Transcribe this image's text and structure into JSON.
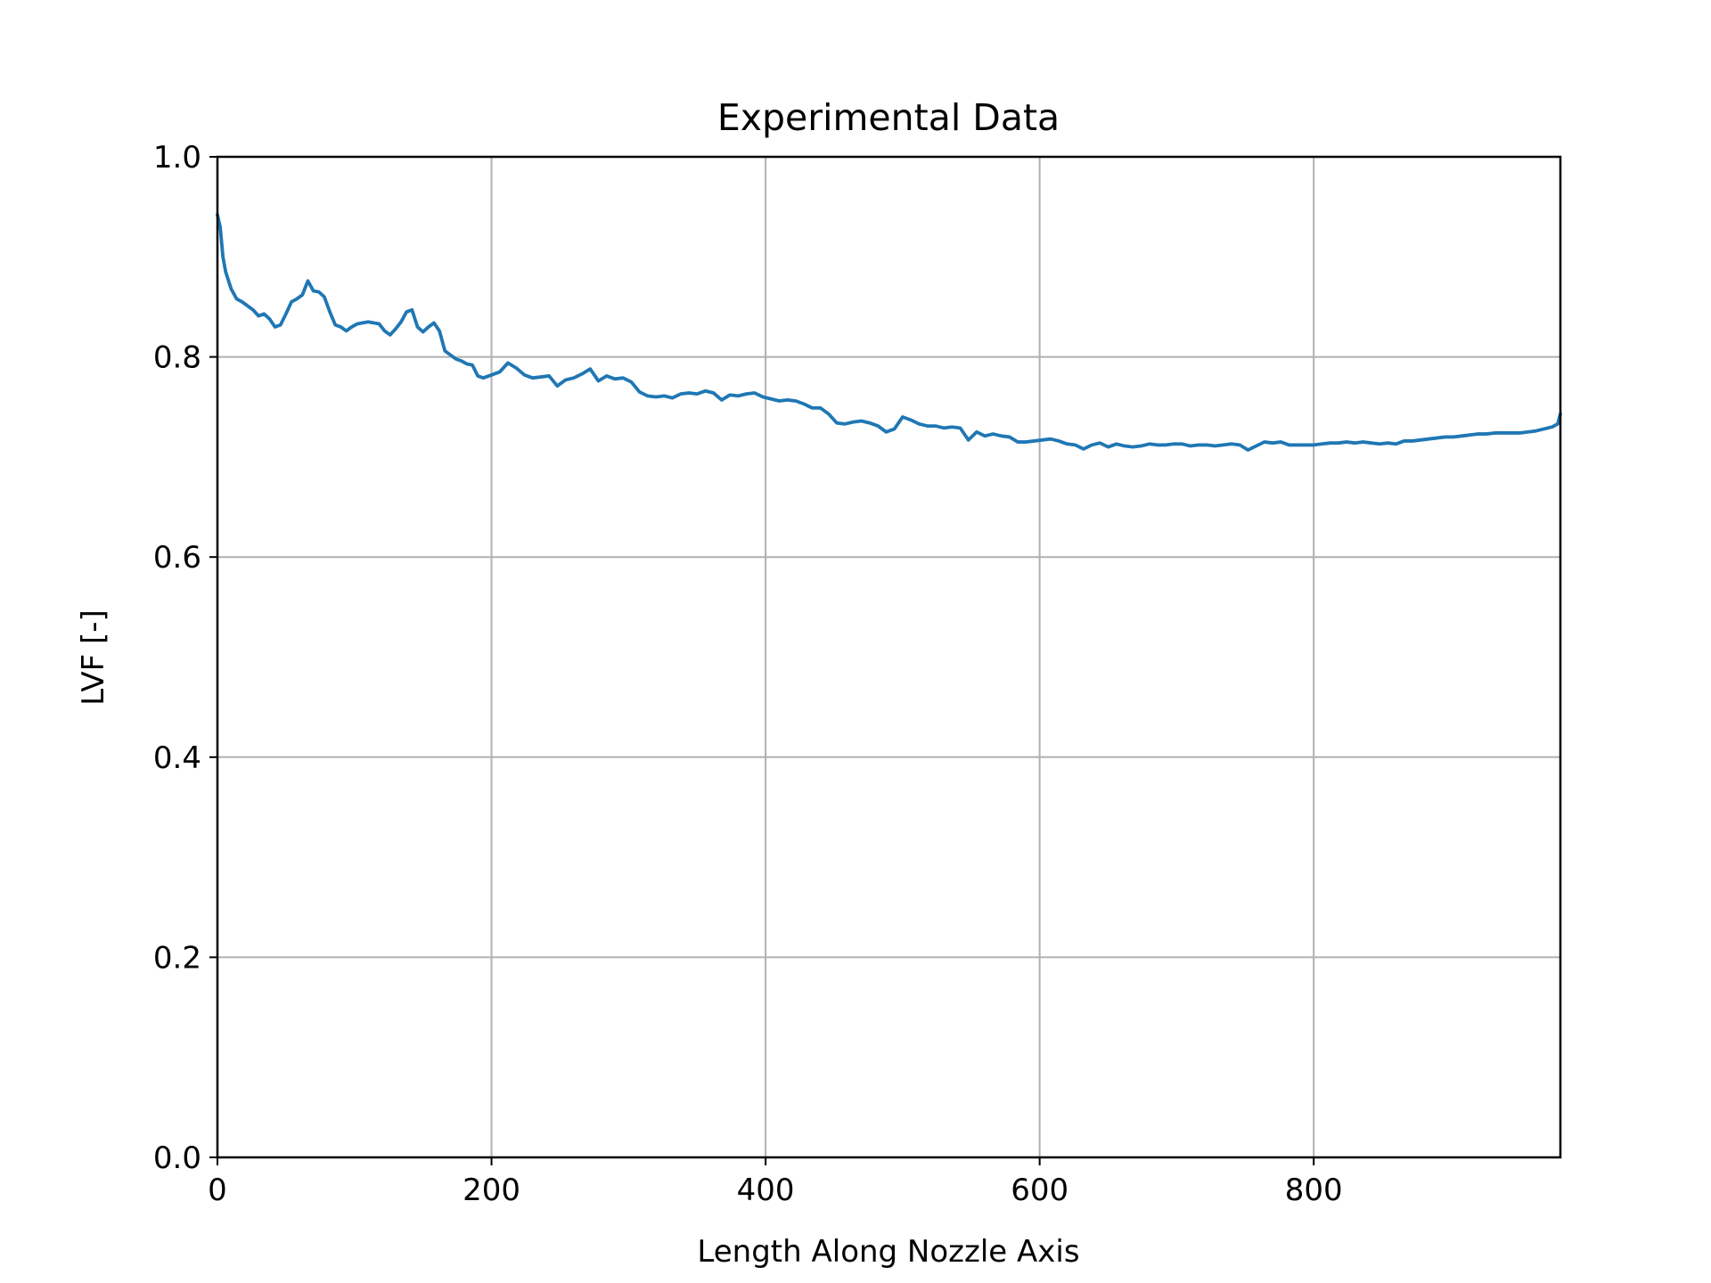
{
  "chart_data": {
    "type": "line",
    "title": "Experimental Data",
    "xlabel": "Length Along Nozzle Axis",
    "ylabel": "LVF [-]",
    "xlim": [
      0,
      980
    ],
    "ylim": [
      0,
      1.0
    ],
    "xticks": [
      0,
      200,
      400,
      600,
      800
    ],
    "xtick_labels": [
      "0",
      "200",
      "400",
      "600",
      "800"
    ],
    "yticks": [
      0,
      0.2,
      0.4,
      0.6,
      0.8,
      1.0
    ],
    "ytick_labels": [
      "0.0",
      "0.2",
      "0.4",
      "0.6",
      "0.8",
      "1.0"
    ],
    "grid": true,
    "legend": "none",
    "series": [
      {
        "color": "#1f77b4",
        "x": [
          0,
          2,
          4,
          6,
          10,
          14,
          18,
          22,
          26,
          30,
          34,
          38,
          42,
          46,
          50,
          54,
          58,
          62,
          66,
          70,
          74,
          78,
          82,
          86,
          90,
          94,
          98,
          102,
          106,
          110,
          114,
          118,
          122,
          126,
          130,
          134,
          138,
          142,
          146,
          150,
          154,
          158,
          162,
          166,
          170,
          174,
          178,
          182,
          186,
          190,
          194,
          198,
          202,
          206,
          212,
          218,
          224,
          230,
          236,
          242,
          248,
          254,
          260,
          266,
          272,
          278,
          284,
          290,
          296,
          302,
          308,
          314,
          320,
          326,
          332,
          338,
          344,
          350,
          356,
          362,
          368,
          374,
          380,
          386,
          392,
          398,
          404,
          410,
          416,
          422,
          428,
          434,
          440,
          446,
          452,
          458,
          464,
          470,
          476,
          482,
          488,
          494,
          500,
          506,
          512,
          518,
          524,
          530,
          536,
          542,
          548,
          554,
          560,
          566,
          572,
          578,
          584,
          590,
          596,
          602,
          608,
          614,
          620,
          626,
          632,
          638,
          644,
          650,
          656,
          662,
          668,
          674,
          680,
          686,
          692,
          698,
          704,
          710,
          716,
          722,
          728,
          734,
          740,
          746,
          752,
          758,
          764,
          770,
          776,
          782,
          788,
          794,
          800,
          806,
          812,
          818,
          824,
          830,
          836,
          842,
          848,
          854,
          860,
          866,
          872,
          878,
          884,
          890,
          896,
          902,
          908,
          914,
          920,
          926,
          932,
          938,
          944,
          950,
          956,
          962,
          968,
          974,
          978,
          980
        ],
        "y": [
          0.942,
          0.93,
          0.9,
          0.885,
          0.868,
          0.858,
          0.855,
          0.851,
          0.847,
          0.841,
          0.843,
          0.838,
          0.83,
          0.832,
          0.843,
          0.855,
          0.858,
          0.862,
          0.876,
          0.866,
          0.865,
          0.86,
          0.845,
          0.832,
          0.83,
          0.826,
          0.83,
          0.833,
          0.834,
          0.835,
          0.834,
          0.833,
          0.826,
          0.822,
          0.828,
          0.835,
          0.845,
          0.847,
          0.83,
          0.825,
          0.83,
          0.834,
          0.826,
          0.806,
          0.802,
          0.798,
          0.796,
          0.793,
          0.792,
          0.781,
          0.779,
          0.781,
          0.783,
          0.785,
          0.794,
          0.789,
          0.782,
          0.779,
          0.78,
          0.781,
          0.771,
          0.777,
          0.779,
          0.783,
          0.788,
          0.776,
          0.781,
          0.778,
          0.779,
          0.775,
          0.765,
          0.761,
          0.76,
          0.761,
          0.759,
          0.763,
          0.764,
          0.763,
          0.766,
          0.764,
          0.757,
          0.762,
          0.761,
          0.763,
          0.764,
          0.76,
          0.758,
          0.756,
          0.757,
          0.756,
          0.753,
          0.749,
          0.749,
          0.743,
          0.734,
          0.733,
          0.735,
          0.736,
          0.734,
          0.731,
          0.725,
          0.728,
          0.74,
          0.737,
          0.733,
          0.731,
          0.731,
          0.729,
          0.73,
          0.729,
          0.717,
          0.725,
          0.721,
          0.723,
          0.721,
          0.72,
          0.715,
          0.715,
          0.716,
          0.717,
          0.718,
          0.716,
          0.713,
          0.712,
          0.708,
          0.712,
          0.714,
          0.71,
          0.713,
          0.711,
          0.71,
          0.711,
          0.713,
          0.712,
          0.712,
          0.713,
          0.713,
          0.711,
          0.712,
          0.712,
          0.711,
          0.712,
          0.713,
          0.712,
          0.707,
          0.711,
          0.715,
          0.714,
          0.715,
          0.712,
          0.712,
          0.712,
          0.712,
          0.713,
          0.714,
          0.714,
          0.715,
          0.714,
          0.715,
          0.714,
          0.713,
          0.714,
          0.713,
          0.716,
          0.716,
          0.717,
          0.718,
          0.719,
          0.72,
          0.72,
          0.721,
          0.722,
          0.723,
          0.723,
          0.724,
          0.724,
          0.724,
          0.724,
          0.725,
          0.726,
          0.728,
          0.73,
          0.733,
          0.743
        ]
      }
    ]
  }
}
